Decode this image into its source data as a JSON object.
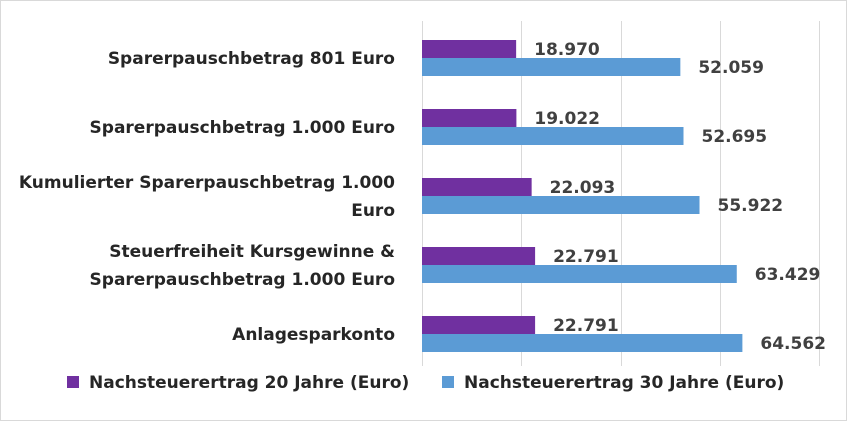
{
  "chart_data": {
    "type": "bar",
    "orientation": "horizontal",
    "categories": [
      [
        "Sparerpauschbetrag 801 Euro"
      ],
      [
        "Sparerpauschbetrag 1.000 Euro"
      ],
      [
        "Kumulierter Sparerpauschbetrag 1.000",
        "Euro"
      ],
      [
        "Steuerfreiheit Kursgewinne &",
        "Sparerpauschbetrag 1.000 Euro"
      ],
      [
        "Anlagesparkonto"
      ]
    ],
    "series": [
      {
        "name": "Nachsteuerertrag 20 Jahre (Euro)",
        "color": "#7030a0",
        "values": [
          18970,
          19022,
          22093,
          22791,
          22791
        ],
        "labels": [
          "18.970",
          "19.022",
          "22.093",
          "22.791",
          "22.791"
        ]
      },
      {
        "name": "Nachsteuerertrag 30 Jahre (Euro)",
        "color": "#5b9bd5",
        "values": [
          52059,
          52695,
          55922,
          63429,
          64562
        ],
        "labels": [
          "52.059",
          "52.695",
          "55.922",
          "63.429",
          "64.562"
        ]
      }
    ],
    "xlim": [
      0,
      80000
    ],
    "x_gridlines": [
      0,
      20000,
      40000,
      60000,
      80000
    ],
    "grid": true,
    "legend_position": "bottom",
    "title": "",
    "xlabel": "",
    "ylabel": ""
  }
}
